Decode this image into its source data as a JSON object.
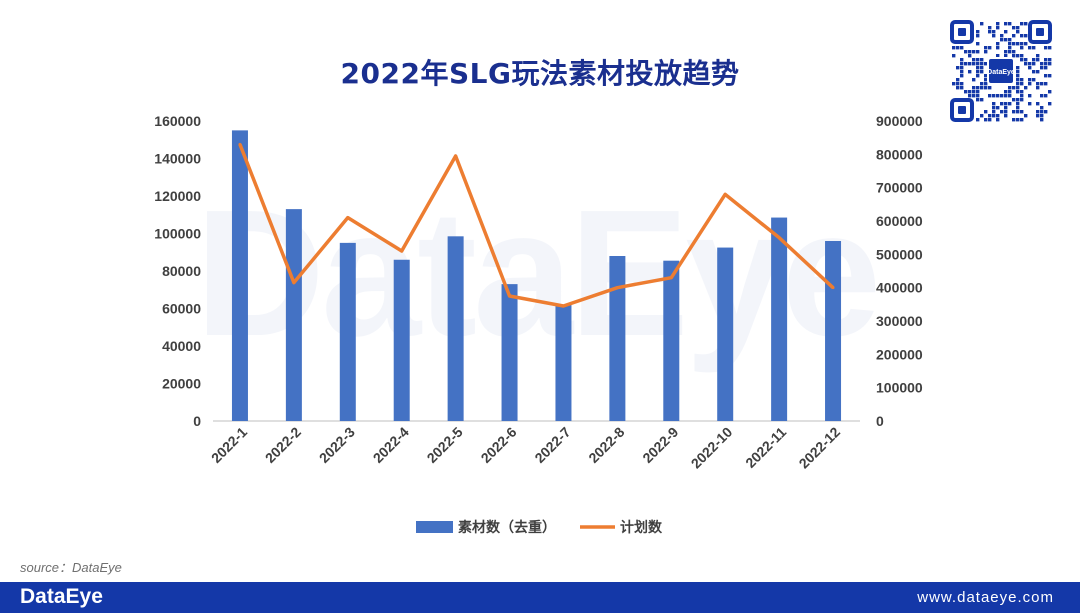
{
  "chart_data": {
    "type": "bar",
    "title": "2022年SLG玩法素材投放趋势",
    "categories": [
      "2022-1",
      "2022-2",
      "2022-3",
      "2022-4",
      "2022-5",
      "2022-6",
      "2022-7",
      "2022-8",
      "2022-9",
      "2022-10",
      "2022-11",
      "2022-12"
    ],
    "series": [
      {
        "name": "素材数（去重）",
        "type": "bar",
        "axis": "left",
        "color": "#4472c4",
        "values": [
          155000,
          113000,
          95000,
          86000,
          98500,
          73000,
          62000,
          88000,
          85500,
          92500,
          108500,
          96000
        ]
      },
      {
        "name": "计划数",
        "type": "line",
        "axis": "right",
        "color": "#ed7d31",
        "values": [
          830000,
          415000,
          610000,
          510000,
          795000,
          375000,
          345000,
          400000,
          430000,
          680000,
          550000,
          400000
        ]
      }
    ],
    "y_left": {
      "ylim": [
        0,
        160000
      ],
      "ticks": [
        "160000",
        "140000",
        "120000",
        "100000",
        "80000",
        "60000",
        "40000",
        "20000",
        "0"
      ]
    },
    "y_right": {
      "ylim": [
        0,
        900000
      ],
      "ticks": [
        "900000",
        "800000",
        "700000",
        "600000",
        "500000",
        "400000",
        "300000",
        "200000",
        "100000",
        "0"
      ]
    },
    "grid": false,
    "legend_position": "bottom"
  },
  "watermark": "DataEye",
  "qr_code_label": "DataEye",
  "source_text": "source：DataEye",
  "footer": {
    "brand": "DataEye",
    "url": "www.dataeye.com"
  }
}
